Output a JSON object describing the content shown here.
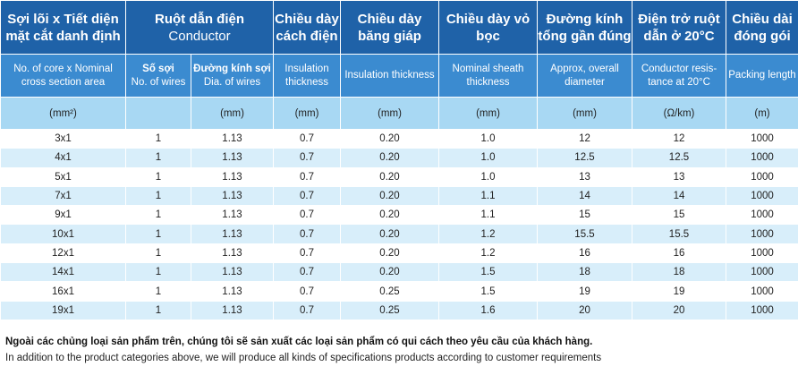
{
  "header": {
    "row1": {
      "core_vi": "Sợi lõi x Tiết diện mặt cắt danh định",
      "conductor_vi": "Ruột dẫn điện",
      "conductor_en": "Conductor",
      "insulation_vi": "Chiều dày cách điện",
      "tape_vi": "Chiều dày băng giáp",
      "sheath_vi": "Chiều dày vỏ bọc",
      "diameter_vi": "Đường kính tổng gần đúng",
      "resistance_vi": "Điện trở ruột dẫn ở 20°C",
      "packing_vi": "Chiều dài đóng gói"
    },
    "row2": {
      "core_en": "No. of core x Nominal cross section area",
      "wires_vi": "Số sợi",
      "wires_en": "No. of wires",
      "wire_dia_vi": "Đường kính sợi",
      "wire_dia_en": "Dia. of wires",
      "insulation_en": "Insulation thickness",
      "tape_en": "Insulation thickness",
      "sheath_en": "Nominal sheath thickness",
      "diameter_en": "Approx, overall diameter",
      "resistance_en": "Conductor resis-tance at 20°C",
      "packing_en": "Packing length"
    },
    "units": [
      "(mm²)",
      "",
      "(mm)",
      "(mm)",
      "(mm)",
      "(mm)",
      "(mm)",
      "(Ω/km)",
      "(m)"
    ]
  },
  "rows": [
    [
      "3x1",
      "1",
      "1.13",
      "0.7",
      "0.20",
      "1.0",
      "12",
      "12",
      "1000"
    ],
    [
      "4x1",
      "1",
      "1.13",
      "0.7",
      "0.20",
      "1.0",
      "12.5",
      "12.5",
      "1000"
    ],
    [
      "5x1",
      "1",
      "1.13",
      "0.7",
      "0.20",
      "1.0",
      "13",
      "13",
      "1000"
    ],
    [
      "7x1",
      "1",
      "1.13",
      "0.7",
      "0.20",
      "1.1",
      "14",
      "14",
      "1000"
    ],
    [
      "9x1",
      "1",
      "1.13",
      "0.7",
      "0.20",
      "1.1",
      "15",
      "15",
      "1000"
    ],
    [
      "10x1",
      "1",
      "1.13",
      "0.7",
      "0.20",
      "1.2",
      "15.5",
      "15.5",
      "1000"
    ],
    [
      "12x1",
      "1",
      "1.13",
      "0.7",
      "0.20",
      "1.2",
      "16",
      "16",
      "1000"
    ],
    [
      "14x1",
      "1",
      "1.13",
      "0.7",
      "0.20",
      "1.5",
      "18",
      "18",
      "1000"
    ],
    [
      "16x1",
      "1",
      "1.13",
      "0.7",
      "0.25",
      "1.5",
      "19",
      "19",
      "1000"
    ],
    [
      "19x1",
      "1",
      "1.13",
      "0.7",
      "0.25",
      "1.6",
      "20",
      "20",
      "1000"
    ]
  ],
  "notes": {
    "vi": "Ngoài các chủng loại sản phẩm trên, chúng tôi sẽ sản xuất các loại sản phẩm có qui cách theo yêu cầu của khách hàng.",
    "en": "In addition to the product categories above, we will produce all kinds of specifications products according to customer requirements"
  },
  "colors": {
    "header_dark": "#1f62a8",
    "header_mid": "#3b8bd0",
    "units_row": "#a8d8f3",
    "stripe": "#d8eefa"
  }
}
